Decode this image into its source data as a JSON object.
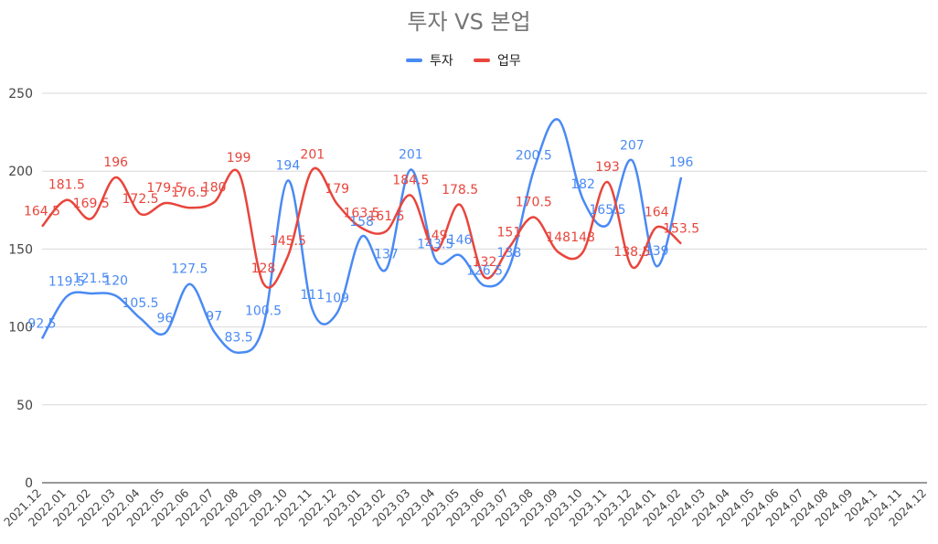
{
  "chart_data": {
    "type": "line",
    "title": "투자  VS 본업",
    "xlabel": "",
    "ylabel": "",
    "ylim": [
      0,
      250
    ],
    "yticks": [
      0,
      50,
      100,
      150,
      200,
      250
    ],
    "grid": true,
    "legend_position": "top",
    "smooth": true,
    "categories": [
      "2021.12",
      "2022.01",
      "2022.02",
      "2022.03",
      "2022.04",
      "2022.05",
      "2022.06",
      "2022.07",
      "2022.08",
      "2022.09",
      "2022.10",
      "2022.11",
      "2022.12",
      "2023.01",
      "2023.02",
      "2023.03",
      "2023.04",
      "2023.05",
      "2023.06",
      "2023.07",
      "2023.08",
      "2023.09",
      "2023.10",
      "2023.11",
      "2023.12",
      "2024.01",
      "2024.02",
      "2024.03",
      "2024.04",
      "2024.05",
      "2024.06",
      "2024.07",
      "2024.08",
      "2024.09",
      "2024.1",
      "2024.11",
      "2024.12"
    ],
    "series": [
      {
        "name": "투자",
        "color": "#4a8af4",
        "values": [
          92.5,
          119.5,
          121.5,
          120,
          105.5,
          96,
          127.5,
          97,
          83.5,
          100.5,
          194,
          111,
          109,
          158,
          137,
          201,
          143.5,
          146,
          126.5,
          138,
          200.5,
          233,
          182,
          165.5,
          207,
          139,
          196,
          null,
          null,
          null,
          null,
          null,
          null,
          null,
          null,
          null,
          null
        ],
        "labels": [
          "92.5",
          "119.5",
          "121.5",
          "120",
          "105.5",
          "96",
          "127.5",
          "97",
          "83.5",
          "100.5",
          "194",
          "111",
          "109",
          "158",
          "137",
          "201",
          "143.5",
          "146",
          "126.5",
          "138",
          "200.5",
          "",
          "182",
          "165.5",
          "207",
          "139",
          "196",
          "",
          "",
          "",
          "",
          "",
          "",
          "",
          "",
          "",
          ""
        ]
      },
      {
        "name": "업무",
        "color": "#e8453c",
        "values": [
          164.5,
          181.5,
          169.5,
          196,
          172.5,
          179.5,
          176.5,
          180,
          199,
          128,
          145.5,
          201,
          179,
          163.5,
          161.5,
          184.5,
          149,
          178.5,
          132,
          151,
          170.5,
          148,
          148,
          193,
          138.5,
          164,
          153.5,
          null,
          null,
          null,
          null,
          null,
          null,
          null,
          null,
          null,
          null
        ],
        "labels": [
          "164.5",
          "181.5",
          "169.5",
          "196",
          "172.5",
          "179.5",
          "176.5",
          "180",
          "199",
          "128",
          "145.5",
          "201",
          "179",
          "163.5",
          "161.5",
          "184.5",
          "149",
          "178.5",
          "132",
          "151",
          "170.5",
          "148",
          "148",
          "193",
          "138.5",
          "164",
          "153.5",
          "",
          "",
          "",
          "",
          "",
          "",
          "",
          "",
          "",
          ""
        ]
      }
    ]
  }
}
